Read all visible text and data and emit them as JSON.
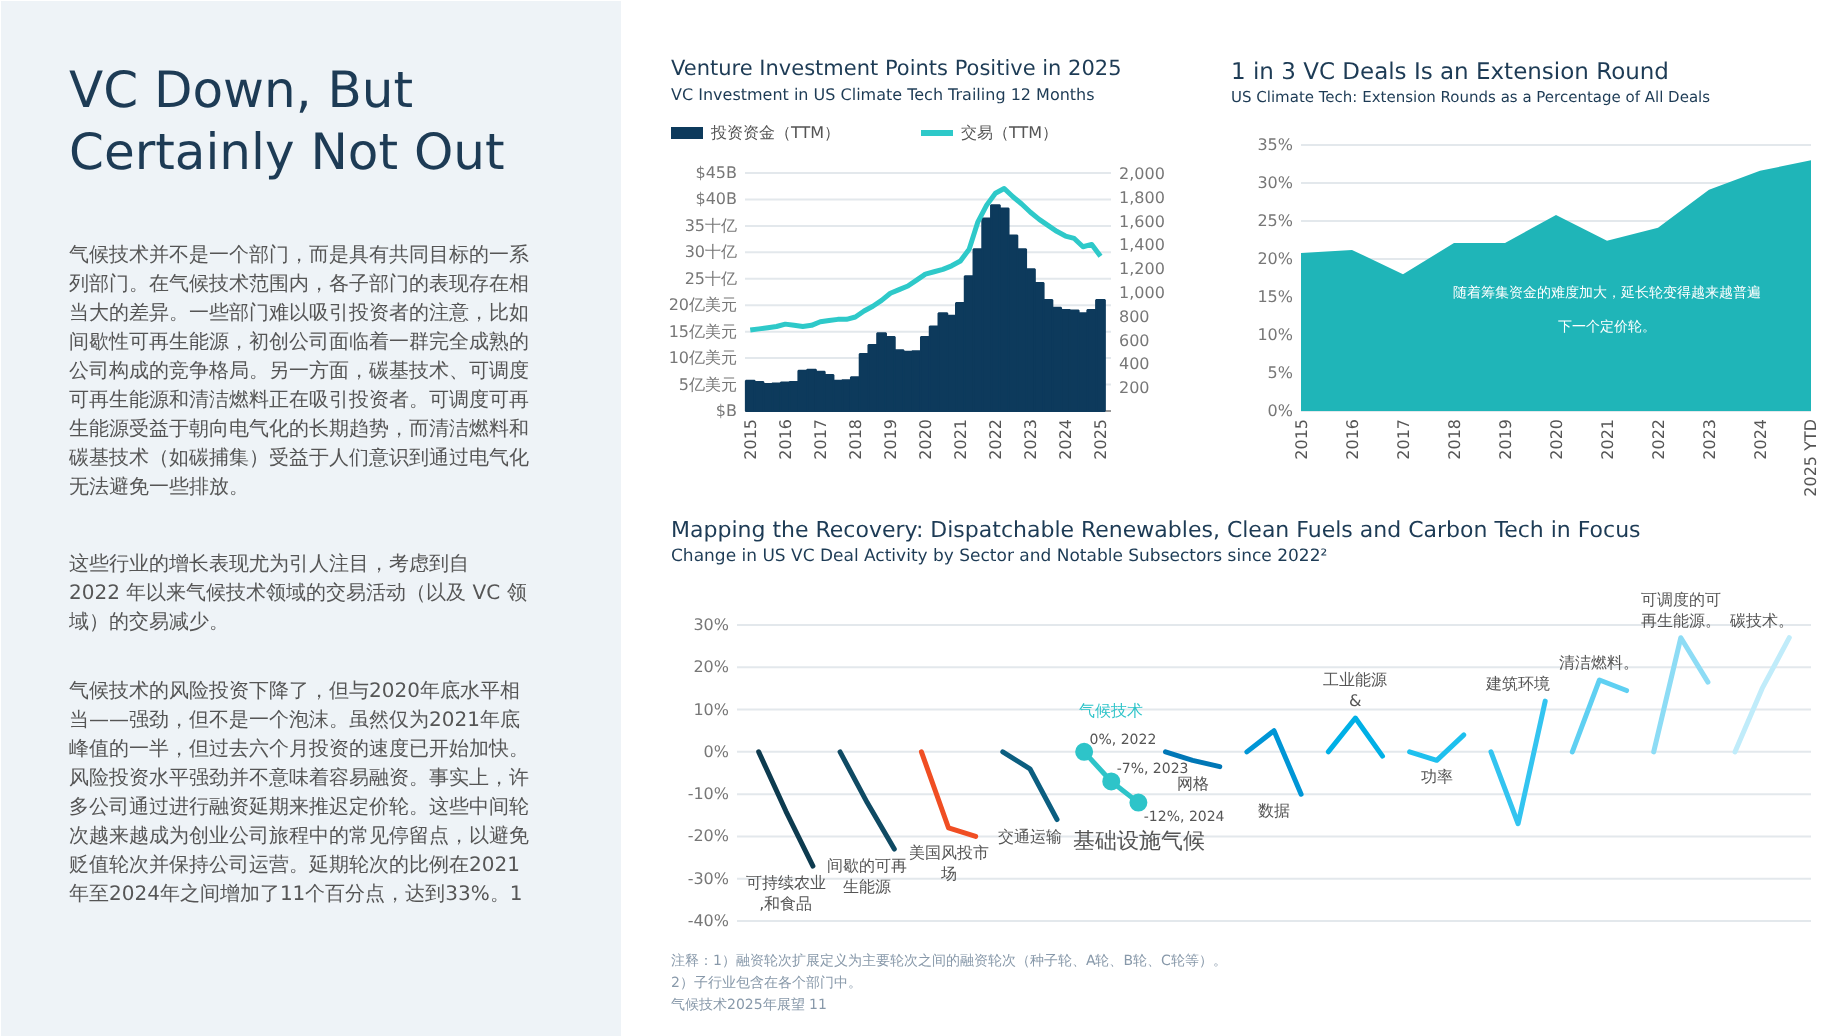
{
  "chart_data": [
    {
      "type": "other",
      "title": "VC Down, But Certainly Not Out",
      "annotations": [
        "气候技术并不是一个部门，而是具有共同目标的一系列部门。在气候技术范围内，各子部门的表现存在相当大的差异。一些部门难以吸引投资者的注意，比如间歇性可再生能源，初创公司面临着一群完全成熟的公司构成的竞争格局。另一方面，碳基技术、可调度可再生能源和清洁燃料正在吸引投资者。可调度可再生能源受益于朝向电气化的长期趋势，而清洁燃料和碳基技术（如碳捕集）受益于人们意识到通过电气化无法避免一些排放。",
        "这些行业的增长表现尤为引人注目，考虑到自 2022 年以来气候技术领域的交易活动（以及 VC 领域）的交易减少。",
        "气候技术的风险投资下降了，但与2020年底水平相当——强劲，但不是一个泡沫。虽然仅为2021年底峰值的一半，但过去六个月投资的速度已开始加快。风险投资水平强劲并不意味着容易融资。事实上，许多公司通过进行融资延期来推迟定价轮。这些中间轮次越来越成为创业公司旅程中的常见停留点，以避免贬值轮次并保持公司运营。延期轮次的比例在2021年至2024年之间增加了11个百分点，达到33%。1"
      ]
    },
    {
      "type": "bar",
      "title": "Venture Investment Points Positive in 2025",
      "subtitle": "VC Investment in US Climate Tech Trailing 12 Months",
      "legend": "top",
      "grid": "y",
      "x": [
        2015,
        2015.25,
        2015.5,
        2015.75,
        2016,
        2016.25,
        2016.5,
        2016.75,
        2017,
        2017.25,
        2017.5,
        2017.75,
        2018,
        2018.25,
        2018.5,
        2018.75,
        2019,
        2019.25,
        2019.5,
        2019.75,
        2020,
        2020.25,
        2020.5,
        2020.75,
        2021,
        2021.25,
        2021.5,
        2021.75,
        2022,
        2022.25,
        2022.5,
        2022.75,
        2023,
        2023.25,
        2023.5,
        2023.75,
        2024,
        2024.25,
        2024.5,
        2024.75,
        2025
      ],
      "series": [
        {
          "name": "投资资金（TTM）",
          "color": "#0d3a5c",
          "values": [
            5.7,
            5.5,
            5.1,
            5.2,
            5.4,
            5.5,
            7.6,
            7.8,
            7.4,
            6.8,
            5.7,
            5.8,
            6.4,
            10.8,
            12.5,
            14.7,
            14.0,
            11.5,
            11.2,
            11.3,
            14.0,
            16.0,
            18.5,
            18.0,
            20.4,
            25.5,
            30.6,
            36.4,
            38.9,
            38.3,
            33.2,
            30.6,
            26.8,
            24.2,
            21.0,
            19.5,
            19.1,
            19.0,
            18.5,
            19.1,
            21.0
          ]
        },
        {
          "name": "交易（TTM）",
          "type": "line",
          "axis": "y2",
          "color": "#2ec9c9",
          "values": [
            680,
            690,
            700,
            710,
            730,
            720,
            710,
            720,
            750,
            760,
            770,
            770,
            790,
            840,
            880,
            930,
            990,
            1020,
            1050,
            1100,
            1150,
            1170,
            1190,
            1220,
            1260,
            1360,
            1590,
            1730,
            1830,
            1870,
            1800,
            1740,
            1670,
            1610,
            1560,
            1510,
            1470,
            1450,
            1380,
            1400,
            1300
          ]
        }
      ],
      "xlim": [
        2014.85,
        2025.3
      ],
      "xticks": [
        2015,
        2016,
        2017,
        2018,
        2019,
        2020,
        2021,
        2022,
        2023,
        2024,
        2025
      ],
      "ylim": [
        0,
        45
      ],
      "yticks": [
        {
          "value": 0,
          "label": "$B"
        },
        {
          "value": 5,
          "label": "5亿美元"
        },
        {
          "value": 10,
          "label": "10亿美元"
        },
        {
          "value": 15,
          "label": "15亿美元"
        },
        {
          "value": 20,
          "label": "20亿美元"
        },
        {
          "value": 25,
          "label": "25十亿"
        },
        {
          "value": 30,
          "label": "30十亿"
        },
        {
          "value": 35,
          "label": "35十亿"
        },
        {
          "value": 40,
          "label": "$40B"
        },
        {
          "value": 45,
          "label": "$45B"
        }
      ],
      "y2lim": [
        0,
        2000
      ],
      "y2ticks": [
        200,
        400,
        600,
        800,
        {
          "value": 1000,
          "label": "1,000"
        },
        {
          "value": 1200,
          "label": "1,200"
        },
        {
          "value": 1400,
          "label": "1,400"
        },
        {
          "value": 1600,
          "label": "1,600"
        },
        {
          "value": 1800,
          "label": "1,800"
        },
        {
          "value": 2000,
          "label": "2,000"
        }
      ]
    },
    {
      "type": "area",
      "title": "1 in 3 VC Deals Is an Extension Round",
      "subtitle": "US Climate Tech: Extension Rounds as a Percentage of All Deals",
      "grid": "y",
      "categories": [
        "2015",
        "2016",
        "2017",
        "2018",
        "2019",
        "2020",
        "2021",
        "2022",
        "2023",
        "2024",
        "2025 YTD"
      ],
      "values": [
        20.8,
        21.2,
        18,
        22.1,
        22.1,
        25.8,
        22.4,
        24.1,
        29.1,
        31.6,
        33
      ],
      "color": "#1fb5b8",
      "ylim": [
        0,
        35
      ],
      "yticks": [
        {
          "value": 0,
          "label": "0%"
        },
        {
          "value": 5,
          "label": "5%"
        },
        {
          "value": 10,
          "label": "10%"
        },
        {
          "value": 15,
          "label": "15%"
        },
        {
          "value": 20,
          "label": "20%"
        },
        {
          "value": 25,
          "label": "25%"
        },
        {
          "value": 30,
          "label": "30%"
        },
        {
          "value": 35,
          "label": "35%"
        }
      ],
      "annotations": [
        "随着筹集资金的难度加大，延长轮变得越来越普遍",
        "下一个定价轮。"
      ]
    },
    {
      "type": "line",
      "title": "Mapping the Recovery: Dispatchable Renewables, Clean Fuels and Carbon Tech in Focus",
      "subtitle": "Change in US VC Deal Activity by Sector and Notable Subsectors since 2022²",
      "grid": "y",
      "tick_labels": "y",
      "categories": [
        null,
        null,
        null,
        null,
        null,
        null,
        null,
        null,
        null,
        null,
        null,
        null,
        null,
        null,
        null,
        null,
        null,
        null,
        null,
        null,
        null,
        null,
        null,
        null,
        null,
        null,
        null,
        null,
        null,
        null,
        null,
        null,
        null,
        null,
        null,
        null,
        null,
        null,
        null
      ],
      "ylim": [
        -40,
        30
      ],
      "yticks": [
        {
          "value": 30,
          "label": "30%"
        },
        {
          "value": 20,
          "label": "20%"
        },
        {
          "value": 10,
          "label": "10%"
        },
        {
          "value": 0,
          "label": "0%"
        },
        {
          "value": -10,
          "label": "-10%"
        },
        {
          "value": -20,
          "label": "-20%"
        },
        {
          "value": -30,
          "label": "-30%"
        },
        {
          "value": -40,
          "label": "-40%"
        }
      ],
      "series": [
        {
          "name": "可持续农业,和食品",
          "color": "#0d3b4f",
          "values": [
            0,
            -14,
            -27,
            null,
            null,
            null,
            null,
            null,
            null,
            null,
            null,
            null,
            null,
            null,
            null,
            null,
            null,
            null,
            null,
            null,
            null,
            null,
            null,
            null,
            null,
            null,
            null,
            null,
            null,
            null,
            null,
            null,
            null,
            null,
            null,
            null,
            null,
            null,
            null
          ]
        },
        {
          "name": "间歇的可再生能源",
          "color": "#0f4a63",
          "values": [
            null,
            null,
            null,
            0,
            -12,
            -23,
            null,
            null,
            null,
            null,
            null,
            null,
            null,
            null,
            null,
            null,
            null,
            null,
            null,
            null,
            null,
            null,
            null,
            null,
            null,
            null,
            null,
            null,
            null,
            null,
            null,
            null,
            null,
            null,
            null,
            null,
            null,
            null,
            null
          ]
        },
        {
          "name": "美国风投市场",
          "color": "#f04e23",
          "values": [
            null,
            null,
            null,
            null,
            null,
            null,
            0,
            -18,
            -20,
            null,
            null,
            null,
            null,
            null,
            null,
            null,
            null,
            null,
            null,
            null,
            null,
            null,
            null,
            null,
            null,
            null,
            null,
            null,
            null,
            null,
            null,
            null,
            null,
            null,
            null,
            null,
            null,
            null,
            null
          ]
        },
        {
          "name": "交通运输",
          "color": "#0b5e80",
          "values": [
            null,
            null,
            null,
            null,
            null,
            null,
            null,
            null,
            null,
            0,
            -4,
            -16,
            null,
            null,
            null,
            null,
            null,
            null,
            null,
            null,
            null,
            null,
            null,
            null,
            null,
            null,
            null,
            null,
            null,
            null,
            null,
            null,
            null,
            null,
            null,
            null,
            null,
            null,
            null
          ]
        },
        {
          "name": "气候技术",
          "color": "#2ec4c9",
          "marker": "circle",
          "value_labels": [
            null,
            null,
            null,
            null,
            null,
            null,
            null,
            null,
            null,
            null,
            null,
            null,
            "0%, 2022",
            "-7%, 2023",
            "-12%, 2024",
            null,
            null,
            null,
            null,
            null,
            null,
            null,
            null,
            null,
            null,
            null,
            null,
            null,
            null,
            null,
            null,
            null,
            null,
            null,
            null,
            null,
            null,
            null,
            null
          ],
          "values": [
            null,
            null,
            null,
            null,
            null,
            null,
            null,
            null,
            null,
            null,
            null,
            null,
            0,
            -7,
            -12,
            null,
            null,
            null,
            null,
            null,
            null,
            null,
            null,
            null,
            null,
            null,
            null,
            null,
            null,
            null,
            null,
            null,
            null,
            null,
            null,
            null,
            null,
            null,
            null
          ]
        },
        {
          "name": "网格",
          "color": "#0077b6",
          "values": [
            null,
            null,
            null,
            null,
            null,
            null,
            null,
            null,
            null,
            null,
            null,
            null,
            null,
            null,
            null,
            0,
            -2,
            -3.5,
            null,
            null,
            null,
            null,
            null,
            null,
            null,
            null,
            null,
            null,
            null,
            null,
            null,
            null,
            null,
            null,
            null,
            null,
            null,
            null,
            null
          ]
        },
        {
          "name": "数据",
          "color": "#0096d6",
          "values": [
            null,
            null,
            null,
            null,
            null,
            null,
            null,
            null,
            null,
            null,
            null,
            null,
            null,
            null,
            null,
            null,
            null,
            null,
            0,
            5,
            -10,
            null,
            null,
            null,
            null,
            null,
            null,
            null,
            null,
            null,
            null,
            null,
            null,
            null,
            null,
            null,
            null,
            null,
            null
          ]
        },
        {
          "name": "工业能源 &",
          "color": "#00b0e6",
          "values": [
            null,
            null,
            null,
            null,
            null,
            null,
            null,
            null,
            null,
            null,
            null,
            null,
            null,
            null,
            null,
            null,
            null,
            null,
            null,
            null,
            null,
            0,
            8,
            -1,
            null,
            null,
            null,
            null,
            null,
            null,
            null,
            null,
            null,
            null,
            null,
            null,
            null,
            null,
            null
          ]
        },
        {
          "name": "功率",
          "color": "#1ec0ee",
          "values": [
            null,
            null,
            null,
            null,
            null,
            null,
            null,
            null,
            null,
            null,
            null,
            null,
            null,
            null,
            null,
            null,
            null,
            null,
            null,
            null,
            null,
            null,
            null,
            null,
            0,
            -2,
            4,
            null,
            null,
            null,
            null,
            null,
            null,
            null,
            null,
            null,
            null,
            null,
            null
          ]
        },
        {
          "name": "建筑环境",
          "color": "#33c4f0",
          "values": [
            null,
            null,
            null,
            null,
            null,
            null,
            null,
            null,
            null,
            null,
            null,
            null,
            null,
            null,
            null,
            null,
            null,
            null,
            null,
            null,
            null,
            null,
            null,
            null,
            null,
            null,
            null,
            0,
            -17,
            12,
            null,
            null,
            null,
            null,
            null,
            null,
            null,
            null,
            null
          ]
        },
        {
          "name": "清洁燃料。",
          "color": "#5fd0f2",
          "values": [
            null,
            null,
            null,
            null,
            null,
            null,
            null,
            null,
            null,
            null,
            null,
            null,
            null,
            null,
            null,
            null,
            null,
            null,
            null,
            null,
            null,
            null,
            null,
            null,
            null,
            null,
            null,
            null,
            null,
            null,
            0,
            17,
            14.5,
            null,
            null,
            null,
            null,
            null,
            null
          ]
        },
        {
          "name": "可调度的可再生能源。",
          "color": "#8ddcf5",
          "values": [
            null,
            null,
            null,
            null,
            null,
            null,
            null,
            null,
            null,
            null,
            null,
            null,
            null,
            null,
            null,
            null,
            null,
            null,
            null,
            null,
            null,
            null,
            null,
            null,
            null,
            null,
            null,
            null,
            null,
            null,
            null,
            null,
            null,
            0,
            27,
            16.5,
            null,
            null,
            null
          ]
        },
        {
          "name": "碳技术。",
          "color": "#c0ecfa",
          "values": [
            null,
            null,
            null,
            null,
            null,
            null,
            null,
            null,
            null,
            null,
            null,
            null,
            null,
            null,
            null,
            null,
            null,
            null,
            null,
            null,
            null,
            null,
            null,
            null,
            null,
            null,
            null,
            null,
            null,
            null,
            null,
            null,
            null,
            null,
            null,
            null,
            0,
            15,
            27
          ]
        }
      ],
      "annotations": [
        "基础设施气候",
        "注释：1）融资轮次扩展定义为主要轮次之间的融资轮次（种子轮、A轮、B轮、C轮等）。",
        "2）子行业包含在各个部门中。",
        "气候技术2025年展望 11"
      ]
    }
  ]
}
